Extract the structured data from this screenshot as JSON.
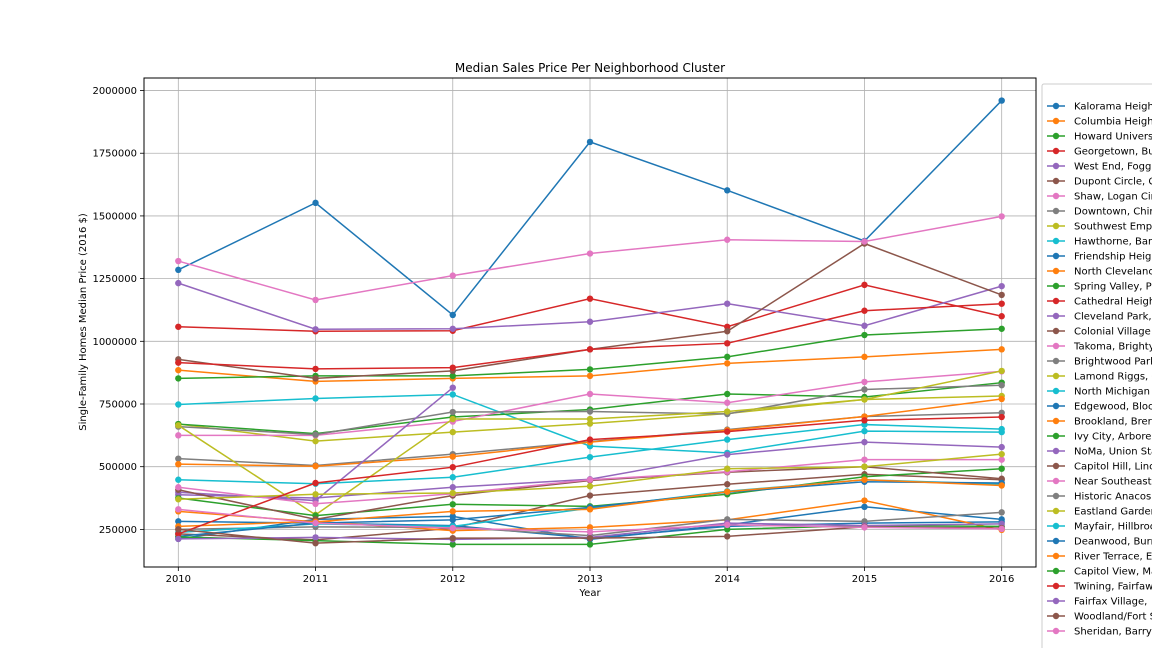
{
  "chart_data": {
    "type": "line",
    "title": "Median Sales Price Per Neighborhood Cluster",
    "xlabel": "Year",
    "ylabel": "Single-Family Homes Median Price (2016 $)",
    "x": [
      2010,
      2011,
      2012,
      2013,
      2014,
      2015,
      2016
    ],
    "xlim": [
      2009.75,
      2016.25
    ],
    "ylim": [
      100000,
      2050000
    ],
    "x_ticks": [
      "2010",
      "2011",
      "2012",
      "2013",
      "2014",
      "2015",
      "2016"
    ],
    "y_ticks": [
      "250000",
      "500000",
      "750000",
      "1000000",
      "1250000",
      "1500000",
      "1750000",
      "2000000"
    ],
    "grid": true,
    "legend_position": "right, outside plot",
    "series": [
      {
        "name": "Kalorama Heigh",
        "color": "#1f77b4",
        "values": [
          1285000,
          1552000,
          1105000,
          1795000,
          1602000,
          1400000,
          1960000
        ]
      },
      {
        "name": "Columbia Heigh",
        "color": "#ff7f0e",
        "values": [
          885000,
          840000,
          852000,
          862000,
          912000,
          938000,
          968000
        ]
      },
      {
        "name": "Howard Univers",
        "color": "#2ca02c",
        "values": [
          852000,
          862000,
          862000,
          888000,
          938000,
          1025000,
          1050000
        ]
      },
      {
        "name": "Georgetown, Bu",
        "color": "#d62728",
        "values": [
          1058000,
          1040000,
          1042000,
          1170000,
          1058000,
          1225000,
          1100000
        ]
      },
      {
        "name": "West End, Fogg",
        "color": "#9467bd",
        "values": [
          1232000,
          1048000,
          1050000,
          1078000,
          1150000,
          1062000,
          1220000
        ]
      },
      {
        "name": "Dupont Circle, C",
        "color": "#8c564b",
        "values": [
          928000,
          852000,
          882000,
          968000,
          1040000,
          1390000,
          1185000
        ]
      },
      {
        "name": "Shaw, Logan Cir",
        "color": "#e377c2",
        "values": [
          1320000,
          1165000,
          1262000,
          1350000,
          1405000,
          1398000,
          1498000
        ]
      },
      {
        "name": "Downtown, Chir",
        "color": "#7f7f7f",
        "values": [
          532000,
          505000,
          550000,
          600000,
          648000,
          700000,
          715000
        ]
      },
      {
        "name": "Southwest Emp",
        "color": "#bcbd22",
        "values": [
          670000,
          602000,
          638000,
          672000,
          712000,
          768000,
          782000
        ]
      },
      {
        "name": "Hawthorne, Bar",
        "color": "#17becf",
        "values": [
          748000,
          772000,
          788000,
          582000,
          555000,
          642000,
          638000
        ]
      },
      {
        "name": "Friendship Heig",
        "color": "#1f77b4",
        "values": [
          212000,
          290000,
          302000,
          210000,
          268000,
          340000,
          290000
        ]
      },
      {
        "name": "North Clevelanc",
        "color": "#ff7f0e",
        "values": [
          510000,
          502000,
          540000,
          598000,
          645000,
          700000,
          770000
        ]
      },
      {
        "name": "Spring Valley, P",
        "color": "#2ca02c",
        "values": [
          670000,
          632000,
          698000,
          728000,
          790000,
          778000,
          835000
        ]
      },
      {
        "name": "Cathedral Heigh",
        "color": "#d62728",
        "values": [
          915000,
          890000,
          895000,
          968000,
          992000,
          1122000,
          1150000
        ]
      },
      {
        "name": "Cleveland Park,",
        "color": "#9467bd",
        "values": [
          388000,
          375000,
          418000,
          450000,
          548000,
          598000,
          578000
        ]
      },
      {
        "name": "Colonial Village",
        "color": "#8c564b",
        "values": [
          232000,
          208000,
          255000,
          385000,
          430000,
          470000,
          448000
        ]
      },
      {
        "name": "Takoma, Brighty",
        "color": "#e377c2",
        "values": [
          625000,
          625000,
          680000,
          790000,
          755000,
          838000,
          880000
        ]
      },
      {
        "name": "Brightwood Park",
        "color": "#7f7f7f",
        "values": [
          660000,
          628000,
          718000,
          720000,
          710000,
          808000,
          825000
        ]
      },
      {
        "name": "Lamond Riggs, C",
        "color": "#bcbd22",
        "values": [
          665000,
          308000,
          690000,
          690000,
          720000,
          768000,
          882000
        ]
      },
      {
        "name": "North Michigan",
        "color": "#17becf",
        "values": [
          448000,
          432000,
          458000,
          538000,
          608000,
          668000,
          650000
        ]
      },
      {
        "name": "Edgewood, Bloc",
        "color": "#1f77b4",
        "values": [
          282000,
          275000,
          265000,
          215000,
          262000,
          275000,
          280000
        ]
      },
      {
        "name": "Brookland, Brer",
        "color": "#ff7f0e",
        "values": [
          262000,
          282000,
          245000,
          258000,
          288000,
          365000,
          248000
        ]
      },
      {
        "name": "Ivy City, Arbore",
        "color": "#2ca02c",
        "values": [
          375000,
          305000,
          350000,
          342000,
          390000,
          460000,
          492000
        ]
      },
      {
        "name": "NoMa, Union Sta",
        "color": "#9467bd",
        "values": [
          398000,
          365000,
          815000,
          null,
          null,
          null,
          null
        ]
      },
      {
        "name": "Capitol Hill, Linc",
        "color": "#8c564b",
        "values": [
          408000,
          290000,
          385000,
          445000,
          478000,
          500000,
          452000
        ]
      },
      {
        "name": "Near Southeast",
        "color": "#e377c2",
        "values": [
          418000,
          352000,
          392000,
          448000,
          480000,
          528000,
          528000
        ]
      },
      {
        "name": "Historic Anacos",
        "color": "#7f7f7f",
        "values": [
          250000,
          260000,
          258000,
          225000,
          290000,
          282000,
          318000
        ]
      },
      {
        "name": "Eastland Garder",
        "color": "#bcbd22",
        "values": [
          370000,
          390000,
          395000,
          422000,
          492000,
          500000,
          550000
        ]
      },
      {
        "name": "Mayfair, Hillbroc",
        "color": "#17becf",
        "values": [
          238000,
          272000,
          262000,
          335000,
          402000,
          448000,
          430000
        ]
      },
      {
        "name": "Deanwood, Burr",
        "color": "#1f77b4",
        "values": [
          222000,
          275000,
          288000,
          338000,
          398000,
          440000,
          435000
        ]
      },
      {
        "name": "River Terrace, E",
        "color": "#ff7f0e",
        "values": [
          322000,
          280000,
          322000,
          330000,
          400000,
          448000,
          425000
        ]
      },
      {
        "name": "Capitol View, Ma",
        "color": "#2ca02c",
        "values": [
          220000,
          205000,
          190000,
          190000,
          250000,
          265000,
          262000
        ]
      },
      {
        "name": "Twining, Fairfaw",
        "color": "#d62728",
        "values": [
          232000,
          435000,
          498000,
          608000,
          640000,
          685000,
          698000
        ]
      },
      {
        "name": "Fairfax Village,",
        "color": "#9467bd",
        "values": [
          212000,
          218000,
          210000,
          218000,
          275000,
          265000,
          272000
        ]
      },
      {
        "name": "Woodland/Fort S",
        "color": "#8c564b",
        "values": [
          250000,
          195000,
          215000,
          215000,
          222000,
          260000,
          255000
        ]
      },
      {
        "name": "Sheridan, Barry",
        "color": "#e377c2",
        "values": [
          330000,
          275000,
          255000,
          240000,
          268000,
          258000,
          252000
        ]
      }
    ]
  }
}
